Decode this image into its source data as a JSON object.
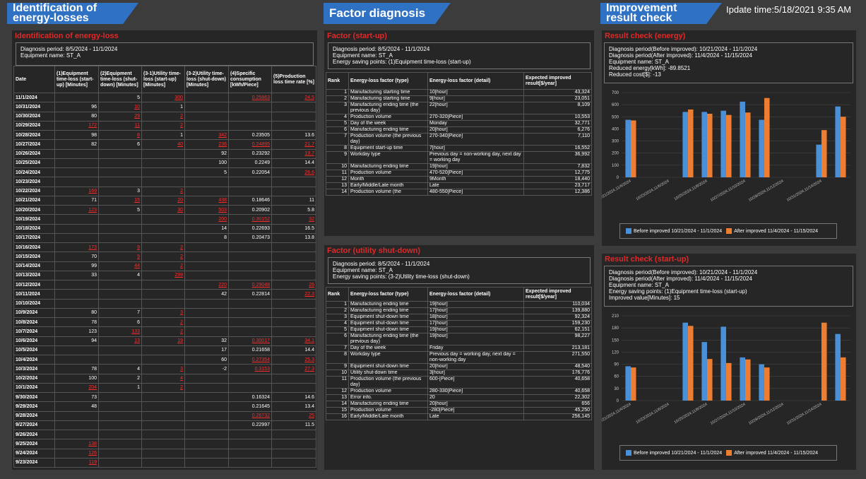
{
  "header": {
    "left": [
      "Identification of",
      "energy-losses"
    ],
    "middle": "Factor diagnosis",
    "right": [
      "Improvement",
      "result check"
    ],
    "update": "Ipdate time:5/18/2021 9:35 AM"
  },
  "loss": {
    "title": "Identification of energy-loss",
    "info": [
      "Diagnosis period: 8/5/2024 - 11/1/2024",
      "Equipment name: ST_A"
    ],
    "headers": [
      "Date",
      "(1)Equipment time-loss (start-up) [Minutes]",
      "(2)Equipment time-loss (shut-down) [Minutes]",
      "(3-1)Utility time-loss (start-up) [Minutes]",
      "(3-2)Utility time-loss (shut-down) [Minutes]",
      "(4)Specific consumption [kWh/Piece]",
      "(5)Production loss time rate [%]"
    ],
    "rows": [
      [
        "11/1/2024",
        "",
        "5",
        "300",
        "",
        "0.25863",
        "24.5"
      ],
      [
        "10/31/2024",
        "96",
        "10",
        "1",
        "",
        "",
        ""
      ],
      [
        "10/30/2024",
        "80",
        "29",
        "2",
        "",
        "",
        ""
      ],
      [
        "10/29/2024",
        "172",
        "11",
        "2",
        "",
        "",
        ""
      ],
      [
        "10/28/2024",
        "98",
        "8",
        "1",
        "342",
        "0.23505",
        "13.6"
      ],
      [
        "10/27/2024",
        "82",
        "6",
        "40",
        "236",
        "0.24895",
        "21.7"
      ],
      [
        "10/26/2024",
        "",
        "",
        "",
        "92",
        "0.23292",
        "19.7"
      ],
      [
        "10/25/2024",
        "",
        "",
        "",
        "100",
        "0.2249",
        "14.4"
      ],
      [
        "10/24/2024",
        "",
        "",
        "",
        "5",
        "0.22054",
        "26.6"
      ],
      [
        "10/23/2024",
        "",
        "",
        "",
        "",
        "",
        ""
      ],
      [
        "10/22/2024",
        "169",
        "3",
        "2",
        "",
        "",
        ""
      ],
      [
        "10/21/2024",
        "71",
        "15",
        "20",
        "438",
        "0.18646",
        "11"
      ],
      [
        "10/20/2024",
        "123",
        "5",
        "30",
        "503",
        "0.20902",
        "5.8"
      ],
      [
        "10/19/2024",
        "",
        "",
        "",
        "200",
        "0.30152",
        "32"
      ],
      [
        "10/18/2024",
        "",
        "",
        "",
        "14",
        "0.22693",
        "16.5"
      ],
      [
        "10/17/2024",
        "",
        "",
        "",
        "8",
        "0.20473",
        "13.8"
      ],
      [
        "10/16/2024",
        "173",
        "9",
        "2",
        "",
        "",
        ""
      ],
      [
        "10/15/2024",
        "70",
        "9",
        "2",
        "",
        "",
        ""
      ],
      [
        "10/14/2024",
        "99",
        "44",
        "2",
        "",
        "",
        ""
      ],
      [
        "10/13/2024",
        "33",
        "4",
        "299",
        "",
        "",
        ""
      ],
      [
        "10/12/2024",
        "",
        "",
        "",
        "220",
        "0.29048",
        "26"
      ],
      [
        "10/11/2024",
        "",
        "",
        "",
        "42",
        "0.22814",
        "22.3"
      ],
      [
        "10/10/2024",
        "",
        "",
        "",
        "",
        "",
        ""
      ],
      [
        "10/9/2024",
        "80",
        "7",
        "3",
        "",
        "",
        ""
      ],
      [
        "10/8/2024",
        "78",
        "6",
        "2",
        "",
        "",
        ""
      ],
      [
        "10/7/2024",
        "123",
        "133",
        "2",
        "",
        "",
        ""
      ],
      [
        "10/6/2024",
        "94",
        "13",
        "19",
        "32",
        "0.30017",
        "34.1"
      ],
      [
        "10/5/2024",
        "",
        "",
        "",
        "17",
        "0.21658",
        "14.4"
      ],
      [
        "10/4/2024",
        "",
        "",
        "",
        "60",
        "0.27354",
        "25.3"
      ],
      [
        "10/3/2024",
        "78",
        "4",
        "3",
        "-2",
        "0.3153",
        "27.3"
      ],
      [
        "10/2/2024",
        "100",
        "2",
        "4",
        "",
        "",
        ""
      ],
      [
        "10/1/2024",
        "204",
        "1",
        "2",
        "",
        "",
        ""
      ],
      [
        "9/30/2024",
        "73",
        "",
        "",
        "",
        "0.16324",
        "14.6"
      ],
      [
        "9/29/2024",
        "48",
        "",
        "",
        "",
        "0.21645",
        "13.4"
      ],
      [
        "9/28/2024",
        "",
        "",
        "",
        "",
        "0.26732",
        "25"
      ],
      [
        "9/27/2024",
        "",
        "",
        "",
        "",
        "0.22997",
        "11.5"
      ],
      [
        "9/26/2024",
        "",
        "",
        "",
        "",
        "",
        ""
      ],
      [
        "9/25/2024",
        "138",
        "",
        "",
        "",
        "",
        ""
      ],
      [
        "9/24/2024",
        "126",
        "",
        "",
        "",
        "",
        ""
      ],
      [
        "9/23/2024",
        "119",
        "",
        "",
        "",
        "",
        ""
      ]
    ],
    "red": [
      [
        0,
        3
      ],
      [
        0,
        5
      ],
      [
        0,
        6
      ],
      [
        1,
        2
      ],
      [
        2,
        2
      ],
      [
        2,
        3
      ],
      [
        3,
        1
      ],
      [
        3,
        2
      ],
      [
        3,
        3
      ],
      [
        4,
        2
      ],
      [
        4,
        4
      ],
      [
        5,
        3
      ],
      [
        5,
        4
      ],
      [
        5,
        5
      ],
      [
        5,
        6
      ],
      [
        6,
        6
      ],
      [
        8,
        6
      ],
      [
        10,
        1
      ],
      [
        10,
        3
      ],
      [
        11,
        2
      ],
      [
        11,
        3
      ],
      [
        11,
        4
      ],
      [
        12,
        1
      ],
      [
        12,
        3
      ],
      [
        12,
        4
      ],
      [
        13,
        4
      ],
      [
        13,
        5
      ],
      [
        13,
        6
      ],
      [
        16,
        1
      ],
      [
        16,
        2
      ],
      [
        16,
        3
      ],
      [
        17,
        2
      ],
      [
        17,
        3
      ],
      [
        18,
        2
      ],
      [
        18,
        3
      ],
      [
        19,
        3
      ],
      [
        20,
        4
      ],
      [
        20,
        5
      ],
      [
        20,
        6
      ],
      [
        21,
        6
      ],
      [
        23,
        3
      ],
      [
        24,
        3
      ],
      [
        25,
        2
      ],
      [
        25,
        3
      ],
      [
        26,
        2
      ],
      [
        26,
        3
      ],
      [
        26,
        5
      ],
      [
        26,
        6
      ],
      [
        28,
        5
      ],
      [
        28,
        6
      ],
      [
        29,
        3
      ],
      [
        29,
        5
      ],
      [
        29,
        6
      ],
      [
        30,
        3
      ],
      [
        31,
        1
      ],
      [
        31,
        3
      ],
      [
        34,
        5
      ],
      [
        34,
        6
      ],
      [
        37,
        1
      ],
      [
        38,
        1
      ],
      [
        39,
        1
      ]
    ]
  },
  "startup": {
    "title": "Factor (start-up)",
    "info": [
      "Diagnosis period: 8/5/2024 - 11/1/2024",
      "Equipment name: ST_A",
      "Energy saving points: (1)Equipment time-loss (start-up)"
    ],
    "headers": [
      "Rank",
      "Energy-loss factor (type)",
      "Energy-loss factor (detail)",
      "Expected improved result[$/year]"
    ],
    "rows": [
      [
        "1",
        "Manufacturing starting time",
        "10[hour]",
        "43,324"
      ],
      [
        "2",
        "Manufacturing starting time",
        "9[hour]",
        "23,051"
      ],
      [
        "3",
        "Manufacturing ending time (the previous day)",
        "22[hour]",
        "8,109"
      ],
      [
        "4",
        "Production volume",
        "270-320[Piece]",
        "10,553"
      ],
      [
        "5",
        "Day of the week",
        "Monday",
        "32,771"
      ],
      [
        "6",
        "Manufacturing ending time",
        "20[hour]",
        "6,276"
      ],
      [
        "7",
        "Production volume (the previous day)",
        "270-340[Piece]",
        "7,110"
      ],
      [
        "8",
        "Equipment start-up time",
        "7[hour]",
        "16,552"
      ],
      [
        "9",
        "Workday type",
        "Previous day = non-working day, next day = working day",
        "36,992"
      ],
      [
        "10",
        "Manufacturing ending time",
        "19[hour]",
        "7,832"
      ],
      [
        "11",
        "Production volume",
        "470-520[Piece]",
        "12,775"
      ],
      [
        "12",
        "Month",
        "9Month",
        "18,440"
      ],
      [
        "13",
        "Early/Middle/Late month",
        "Late",
        "23,717"
      ],
      [
        "14",
        "Production volume (the",
        "480-550[Piece]",
        "12,386"
      ]
    ]
  },
  "shutdown": {
    "title": "Factor (utility shut-down)",
    "info": [
      "Diagnosis period: 8/5/2024 - 11/1/2024",
      "Equipment name: ST_A",
      "Energy saving points: (3-2)Utility time-loss (shut-down)"
    ],
    "headers": [
      "Rank",
      "Energy-loss factor (type)",
      "Energy-loss factor (detail)",
      "Expected improved result[$/year]"
    ],
    "rows": [
      [
        "1",
        "Manufacturing ending time",
        "19[hour]",
        "110,034"
      ],
      [
        "2",
        "Manufacturing ending time",
        "17[hour]",
        "139,880"
      ],
      [
        "3",
        "Equipment shut-down time",
        "18[hour]",
        "92,324"
      ],
      [
        "4",
        "Equipment shut-down time",
        "17[hour]",
        "159,230"
      ],
      [
        "5",
        "Equipment shut-down time",
        "19[hour]",
        "62,151"
      ],
      [
        "6",
        "Manufacturing ending time (the previous day)",
        "19[hour]",
        "98,227"
      ],
      [
        "7",
        "Day of the week",
        "Friday",
        "213,181"
      ],
      [
        "8",
        "Workday type",
        "Previous day = working day, next day = non-working day",
        "271,550"
      ],
      [
        "9",
        "Equipment shut-down time",
        "20[hour]",
        "48,540"
      ],
      [
        "10",
        "Utility shut-down time",
        "3[hour]",
        "176,776"
      ],
      [
        "11",
        "Production volume (the previous day)",
        "600-[Piece]",
        "40,658"
      ],
      [
        "12",
        "Production volume",
        "280-330[Piece]",
        "40,658"
      ],
      [
        "13",
        "Error info.",
        "20",
        "22,302"
      ],
      [
        "14",
        "Manufacturing ending time",
        "20[hour]",
        "656"
      ],
      [
        "15",
        "Production volume",
        "-280[Piece]",
        "45,250"
      ],
      [
        "16",
        "Early/Middle/Late month",
        "Late",
        "256,145"
      ]
    ]
  },
  "energy": {
    "title": "Result check (energy)",
    "info": [
      "Diagnosis period(Before improved): 10/21/2024 - 11/1/2024",
      "Diagnosis period(After improved): 11/4/2024 - 11/15/2024",
      "Equipment name: ST_A",
      "Reduced energy[kWh]: -89.8521",
      "Reduced cost[$]: -13"
    ],
    "legend": [
      "Before improved 10/21/2024 - 11/1/2024",
      "After improved 11/4/2024 - 11/15/2024"
    ]
  },
  "start": {
    "title": "Result check (start-up)",
    "info": [
      "Diagnosis period(Before improved): 10/21/2024 - 11/1/2024",
      "Diagnosis period(After improved): 11/4/2024 - 11/15/2024",
      "Equipment name: ST_A",
      "Energy saving points: (1)Equipment time-loss (start-up)",
      "Improved value[Minutes]: 15"
    ],
    "legend": [
      "Before improved 10/21/2024 - 11/1/2024",
      "After improved 11/4/2024 - 11/15/2024"
    ]
  },
  "chart_data": [
    {
      "type": "bar",
      "categories": [
        "10/21/2024,11/4/2024",
        "10/22/2024,11/5/2024",
        "10/23/2024,11/6/2024",
        "10/24/2024,11/7/2024",
        "10/25/2024,11/8/2024",
        "10/26/2024,11/9/2024",
        "10/27/2024,11/10/2024",
        "10/28/2024,11/11/2024",
        "10/29/2024,11/12/2024",
        "10/30/2024,11/13/2024",
        "10/31/2024,11/14/2024",
        "11/1/2024,11/15/2024"
      ],
      "tick_labels": [
        "10/21/2024,11/4/2024",
        "10/23/2024,11/6/2024",
        "10/25/2024,11/8/2024",
        "10/27/2024,11/10/2024",
        "10/29/2024,11/12/2024",
        "10/31/2024,11/14/2024"
      ],
      "ylim": [
        0,
        700
      ],
      "yticks": [
        0,
        100,
        200,
        300,
        400,
        500,
        600,
        700
      ],
      "series": [
        {
          "name": "Before improved 10/21/2024 - 11/1/2024",
          "color": "#4a90d9",
          "values": [
            475,
            null,
            null,
            540,
            540,
            550,
            625,
            475,
            null,
            null,
            270,
            585
          ]
        },
        {
          "name": "After improved 11/4/2024 - 11/15/2024",
          "color": "#ed7d31",
          "values": [
            470,
            null,
            null,
            560,
            525,
            515,
            535,
            655,
            null,
            null,
            390,
            500
          ]
        }
      ]
    },
    {
      "type": "bar",
      "categories": [
        "10/21/2024,11/4/2024",
        "10/22/2024,11/5/2024",
        "10/23/2024,11/6/2024",
        "10/24/2024,11/7/2024",
        "10/25/2024,11/8/2024",
        "10/26/2024,11/9/2024",
        "10/27/2024,11/10/2024",
        "10/28/2024,11/11/2024",
        "10/29/2024,11/12/2024",
        "10/30/2024,11/13/2024",
        "10/31/2024,11/14/2024",
        "11/1/2024,11/15/2024"
      ],
      "tick_labels": [
        "10/21/2024,11/4/2024",
        "10/23/2024,11/6/2024",
        "10/25/2024,11/8/2024",
        "10/27/2024,11/10/2024",
        "10/29/2024,11/12/2024",
        "10/31/2024,11/14/2024"
      ],
      "ylim": [
        0,
        210
      ],
      "yticks": [
        0,
        30,
        60,
        90,
        120,
        150,
        180,
        210
      ],
      "series": [
        {
          "name": "Before improved 10/21/2024 - 11/1/2024",
          "color": "#4a90d9",
          "values": [
            85,
            null,
            null,
            193,
            145,
            183,
            107,
            90,
            null,
            null,
            null,
            165
          ]
        },
        {
          "name": "After improved 11/4/2024 - 11/15/2024",
          "color": "#ed7d31",
          "values": [
            82,
            null,
            null,
            185,
            103,
            93,
            102,
            82,
            null,
            null,
            193,
            107
          ]
        }
      ]
    }
  ]
}
